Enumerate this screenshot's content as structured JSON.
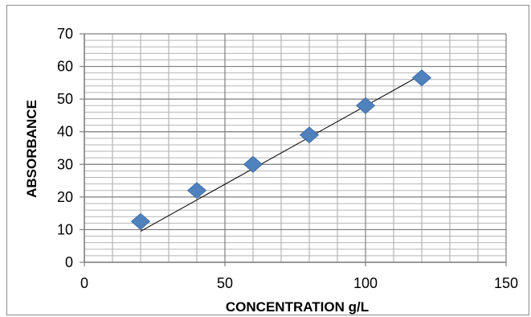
{
  "chart_data": {
    "type": "scatter",
    "title": "",
    "xlabel": "CONCENTRATION g/L",
    "ylabel": "ABSORBANCE",
    "xlim": [
      0,
      150
    ],
    "ylim": [
      0,
      70
    ],
    "x_ticks": [
      0,
      50,
      100,
      150
    ],
    "y_ticks": [
      0,
      10,
      20,
      30,
      40,
      50,
      60,
      70
    ],
    "grid": true,
    "legend": "none",
    "marker": "diamond",
    "marker_color": "#4f81bd",
    "trendline": {
      "type": "linear",
      "color": "#000000",
      "from": [
        20,
        9.5
      ],
      "to": [
        120,
        57.5
      ]
    },
    "series": [
      {
        "x": [
          20,
          40,
          60,
          80,
          100,
          120
        ],
        "y": [
          12.5,
          22,
          30,
          39,
          48,
          56.5
        ]
      }
    ]
  }
}
